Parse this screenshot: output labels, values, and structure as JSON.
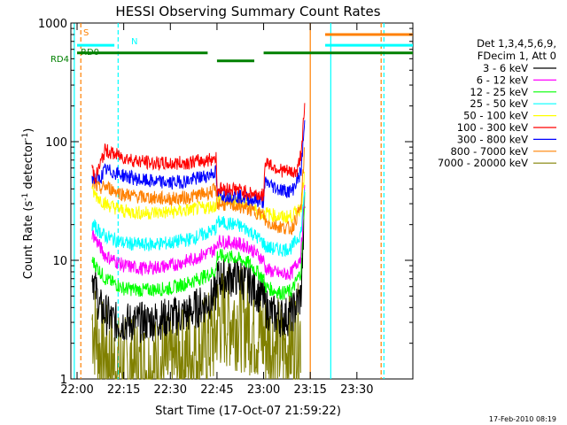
{
  "chart_data": {
    "type": "line",
    "title": "HESSI Observing Summary Count Rates",
    "xlabel": "Start Time (17-Oct-07 21:59:22)",
    "ylabel_prefix": "Count Rate (s",
    "ylabel_exp1": "-1",
    "ylabel_mid": " detector",
    "ylabel_exp2": "-1",
    "ylabel_suffix": ")",
    "yscale": "log",
    "ylim": [
      1,
      1000
    ],
    "xlim": [
      21.9667,
      23.8
    ],
    "xticks": [
      {
        "value": 22.0,
        "label": "22:00"
      },
      {
        "value": 22.25,
        "label": "22:15"
      },
      {
        "value": 22.5,
        "label": "22:30"
      },
      {
        "value": 22.75,
        "label": "22:45"
      },
      {
        "value": 23.0,
        "label": "23:00"
      },
      {
        "value": 23.25,
        "label": "23:15"
      },
      {
        "value": 23.5,
        "label": "23:30"
      }
    ],
    "yticks": [
      {
        "value": 1,
        "label": "1"
      },
      {
        "value": 10,
        "label": "10"
      },
      {
        "value": 100,
        "label": "100"
      },
      {
        "value": 1000,
        "label": "1000"
      }
    ],
    "legend_header": [
      "Det 1,3,4,5,6,9,",
      "FDecim 1, Att 0"
    ],
    "legend_position": "right",
    "timestamp": "17-Feb-2010 08:19",
    "series": [
      {
        "name": "3 - 6 keV",
        "color": "#000000",
        "points": [
          [
            22.08,
            8
          ],
          [
            22.12,
            4
          ],
          [
            22.2,
            3
          ],
          [
            22.35,
            3
          ],
          [
            22.5,
            3.3
          ],
          [
            22.6,
            3.6
          ],
          [
            22.7,
            4.5
          ],
          [
            22.745,
            5.2
          ],
          [
            22.75,
            7
          ],
          [
            22.85,
            7.3
          ],
          [
            22.92,
            6.5
          ],
          [
            23.0,
            4.8
          ],
          [
            23.01,
            4
          ],
          [
            23.05,
            3.5
          ],
          [
            23.1,
            3.3
          ],
          [
            23.15,
            3.5
          ],
          [
            23.2,
            5
          ],
          [
            23.22,
            30
          ]
        ]
      },
      {
        "name": "6 - 12 keV",
        "color": "#ff00ff",
        "points": [
          [
            22.08,
            17
          ],
          [
            22.15,
            11
          ],
          [
            22.25,
            9
          ],
          [
            22.35,
            8.5
          ],
          [
            22.5,
            9
          ],
          [
            22.6,
            10
          ],
          [
            22.7,
            11.5
          ],
          [
            22.745,
            12.5
          ],
          [
            22.75,
            14.5
          ],
          [
            22.85,
            14
          ],
          [
            22.92,
            13
          ],
          [
            23.0,
            10
          ],
          [
            23.01,
            8.5
          ],
          [
            23.05,
            8
          ],
          [
            23.1,
            7.6
          ],
          [
            23.15,
            7.8
          ],
          [
            23.2,
            11
          ],
          [
            23.22,
            40
          ]
        ]
      },
      {
        "name": "12 - 25 keV",
        "color": "#00ff00",
        "points": [
          [
            22.08,
            10
          ],
          [
            22.15,
            7
          ],
          [
            22.25,
            5.8
          ],
          [
            22.35,
            5.6
          ],
          [
            22.5,
            5.8
          ],
          [
            22.6,
            6.5
          ],
          [
            22.7,
            7.5
          ],
          [
            22.745,
            8.2
          ],
          [
            22.75,
            11
          ],
          [
            22.85,
            10.5
          ],
          [
            22.92,
            9.5
          ],
          [
            23.0,
            7
          ],
          [
            23.01,
            6
          ],
          [
            23.05,
            5.6
          ],
          [
            23.1,
            5.3
          ],
          [
            23.15,
            5.5
          ],
          [
            23.2,
            8
          ],
          [
            23.22,
            35
          ]
        ]
      },
      {
        "name": "25 - 50 keV",
        "color": "#00ffff",
        "points": [
          [
            22.08,
            20
          ],
          [
            22.15,
            16
          ],
          [
            22.25,
            14
          ],
          [
            22.35,
            13.5
          ],
          [
            22.5,
            14
          ],
          [
            22.6,
            15
          ],
          [
            22.7,
            17
          ],
          [
            22.745,
            18.5
          ],
          [
            22.75,
            21
          ],
          [
            22.85,
            20
          ],
          [
            22.92,
            18
          ],
          [
            23.0,
            14
          ],
          [
            23.01,
            13
          ],
          [
            23.05,
            12.5
          ],
          [
            23.1,
            12.3
          ],
          [
            23.15,
            12.8
          ],
          [
            23.2,
            17
          ],
          [
            23.22,
            42
          ]
        ]
      },
      {
        "name": "50 - 100 keV",
        "color": "#ffff00",
        "points": [
          [
            22.08,
            38
          ],
          [
            22.15,
            30
          ],
          [
            22.25,
            26
          ],
          [
            22.35,
            25
          ],
          [
            22.5,
            25.5
          ],
          [
            22.6,
            26.5
          ],
          [
            22.7,
            28
          ],
          [
            22.745,
            29
          ],
          [
            22.75,
            33
          ],
          [
            22.85,
            32
          ],
          [
            22.92,
            29
          ],
          [
            23.0,
            24
          ],
          [
            23.01,
            25
          ],
          [
            23.05,
            24
          ],
          [
            23.1,
            23
          ],
          [
            23.15,
            23.5
          ],
          [
            23.2,
            28
          ],
          [
            23.22,
            55
          ]
        ]
      },
      {
        "name": "100 - 300 keV",
        "color": "#ff0000",
        "points": [
          [
            22.08,
            60
          ],
          [
            22.1,
            50
          ],
          [
            22.15,
            85
          ],
          [
            22.2,
            78
          ],
          [
            22.3,
            70
          ],
          [
            22.4,
            66
          ],
          [
            22.5,
            65
          ],
          [
            22.6,
            67
          ],
          [
            22.7,
            70
          ],
          [
            22.745,
            74
          ],
          [
            22.75,
            40
          ],
          [
            22.85,
            40
          ],
          [
            22.92,
            37
          ],
          [
            23.0,
            35
          ],
          [
            23.01,
            70
          ],
          [
            23.05,
            62
          ],
          [
            23.1,
            57
          ],
          [
            23.15,
            55
          ],
          [
            23.18,
            56
          ],
          [
            23.2,
            80
          ],
          [
            23.22,
            190
          ]
        ]
      },
      {
        "name": "300 - 800 keV",
        "color": "#0000ff",
        "points": [
          [
            22.08,
            50
          ],
          [
            22.12,
            48
          ],
          [
            22.15,
            58
          ],
          [
            22.25,
            52
          ],
          [
            22.35,
            47
          ],
          [
            22.5,
            45
          ],
          [
            22.6,
            47
          ],
          [
            22.7,
            52
          ],
          [
            22.745,
            56
          ],
          [
            22.75,
            36
          ],
          [
            22.85,
            35
          ],
          [
            22.92,
            33
          ],
          [
            23.0,
            31
          ],
          [
            23.01,
            46
          ],
          [
            23.05,
            42
          ],
          [
            23.1,
            39
          ],
          [
            23.15,
            38
          ],
          [
            23.2,
            55
          ],
          [
            23.22,
            150
          ]
        ]
      },
      {
        "name": "800 - 7000 keV",
        "color": "#ff8000",
        "points": [
          [
            22.08,
            45
          ],
          [
            22.12,
            40
          ],
          [
            22.15,
            42
          ],
          [
            22.25,
            36
          ],
          [
            22.35,
            34
          ],
          [
            22.5,
            33
          ],
          [
            22.6,
            34
          ],
          [
            22.7,
            37
          ],
          [
            22.745,
            39
          ],
          [
            22.75,
            30
          ],
          [
            22.85,
            29
          ],
          [
            22.92,
            27
          ],
          [
            23.0,
            24
          ],
          [
            23.01,
            21
          ],
          [
            23.05,
            20
          ],
          [
            23.1,
            19
          ],
          [
            23.15,
            18.5
          ],
          [
            23.2,
            28
          ],
          [
            23.22,
            90
          ]
        ]
      },
      {
        "name": "7000 - 20000 keV",
        "color": "#808000",
        "points": [
          [
            22.08,
            3.2
          ],
          [
            22.12,
            1.8
          ],
          [
            22.2,
            1.3
          ],
          [
            22.35,
            1.2
          ],
          [
            22.5,
            1.3
          ],
          [
            22.6,
            1.6
          ],
          [
            22.7,
            2.0
          ],
          [
            22.745,
            2.4
          ],
          [
            22.75,
            3.2
          ],
          [
            22.85,
            3.3
          ],
          [
            22.92,
            3.0
          ],
          [
            23.0,
            2.2
          ],
          [
            23.05,
            1.9
          ],
          [
            23.1,
            1.8
          ],
          [
            23.15,
            1.9
          ],
          [
            23.2,
            2.5
          ]
        ]
      }
    ],
    "state_bars": [
      {
        "label": "S",
        "color": "#ff8000",
        "row_value": 800,
        "segments": [
          [
            23.33,
            23.8
          ]
        ]
      },
      {
        "label": "N",
        "color": "#00ffff",
        "row_value": 650,
        "segments": [
          [
            22.0,
            22.2
          ],
          [
            23.33,
            23.8
          ]
        ]
      },
      {
        "label": "RD0",
        "color": "#008000",
        "row_value": 560,
        "segments": [
          [
            22.0,
            22.7
          ],
          [
            23.0,
            23.8
          ]
        ]
      },
      {
        "label": "RD4",
        "color": "#008000",
        "row_value": 480,
        "segments": [
          [
            22.75,
            22.95
          ]
        ]
      }
    ],
    "vlines": [
      {
        "x": 21.985,
        "color": "#00ffff",
        "dash": false
      },
      {
        "x": 22.02,
        "color": "#ff8000",
        "dash": true
      },
      {
        "x": 22.22,
        "color": "#00ffff",
        "dash": true
      },
      {
        "x": 23.25,
        "color": "#ff8000",
        "dash": false
      },
      {
        "x": 23.36,
        "color": "#00ffff",
        "dash": false
      },
      {
        "x": 23.63,
        "color": "#ff8000",
        "dash": true
      },
      {
        "x": 23.645,
        "color": "#00ffff",
        "dash": true
      }
    ]
  }
}
